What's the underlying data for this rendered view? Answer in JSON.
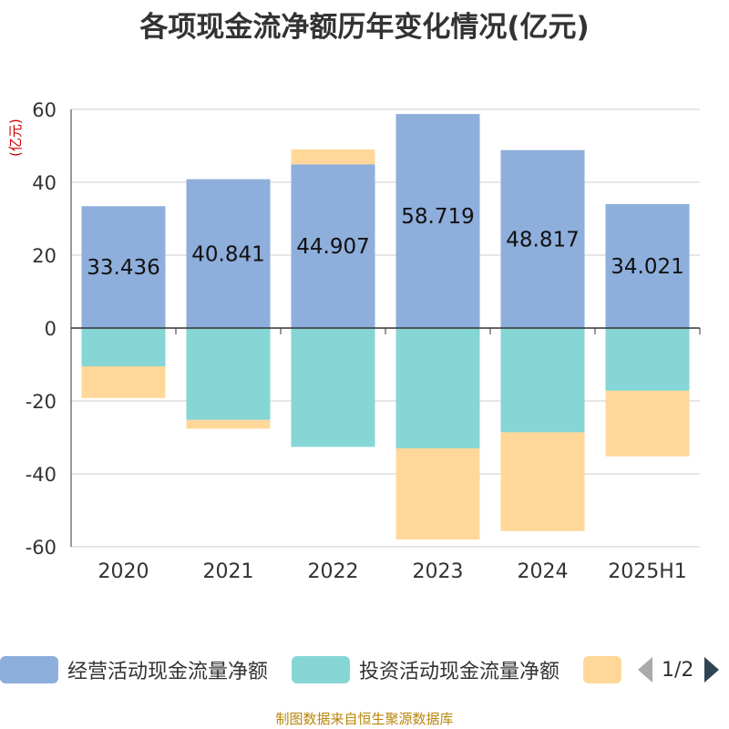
{
  "chart_data": {
    "type": "bar",
    "stacked": true,
    "title": "各项现金流净额历年变化情况(亿元)",
    "ylabel": "(亿元)",
    "ylim": [
      -60,
      60
    ],
    "yticks": [
      60,
      40,
      20,
      0,
      -20,
      -40,
      -60
    ],
    "grid": true,
    "categories": [
      "2020",
      "2021",
      "2022",
      "2023",
      "2024",
      "2025H1"
    ],
    "series": [
      {
        "name": "经营活动现金流量净额",
        "color": "#8eaedb",
        "values": [
          33.436,
          40.841,
          44.907,
          58.719,
          48.817,
          34.021
        ],
        "labels": [
          "33.436",
          "40.841",
          "44.907",
          "58.719",
          "48.817",
          "34.021"
        ]
      },
      {
        "name": "投资活动现金流量净额",
        "color": "#86d6d6",
        "values": [
          -10.5,
          -25.2,
          -32.6,
          -33.0,
          -28.6,
          -17.2
        ]
      },
      {
        "name": "",
        "color": "#ffd899",
        "values": [
          -8.7,
          -2.4,
          4.1,
          -25.0,
          -27.1,
          -18.0
        ]
      }
    ],
    "legend_position": "bottom",
    "legend_page": "1/2"
  },
  "source": "制图数据来自恒生聚源数据库"
}
